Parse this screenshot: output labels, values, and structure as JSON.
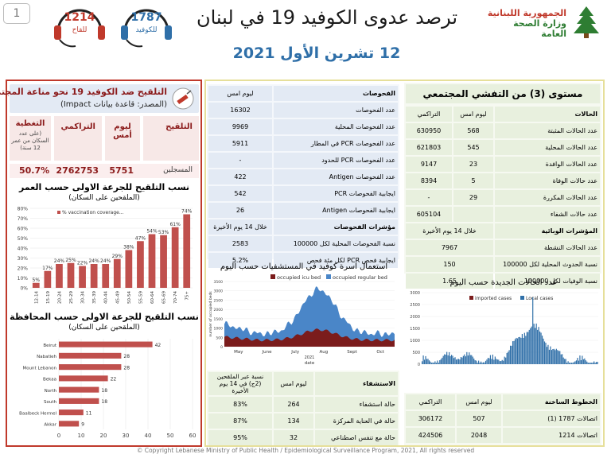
{
  "header": {
    "page_number": "1",
    "title": "ترصد عدوى الكوفيد 19 في لبنان",
    "date": "12 تشرين الأول 2021",
    "gov1": "الجمهورية اللبنانية",
    "gov2": "وزارة الصحة العامة"
  },
  "hotlines": [
    {
      "number": "1787",
      "label": "للكوفيد"
    },
    {
      "number": "1214",
      "label": "للقاح"
    }
  ],
  "vaccination": {
    "title": "التلقيح ضد الكوفيد 19  نحو مناعة المجتمع",
    "source": "(المصدر: قاعدة بيانات Impact)",
    "cols": [
      "التلقيح",
      "ليوم أمس",
      "التراكمي",
      "التغطية"
    ],
    "coverage_note": "(على عدد السكان من عمر 12 سنة)",
    "row": {
      "label": "المسجلين",
      "yesterday": "5751",
      "cumulative": "2762753",
      "coverage": "50.7%"
    },
    "age_title": "نسب التلقيح للجرعة الاولى حسب العمر",
    "age_sub": "(الملقحين على السكان)",
    "gov_title": "نسب التلقيح للجرعة الاولى حسب المحافظة",
    "gov_sub": "(الملقحين على السكان)"
  },
  "testing": {
    "col_title": "الفحوصات",
    "col_yesterday": "ليوم امس",
    "rows": [
      {
        "label": "عدد الفحوصات",
        "value": "16302"
      },
      {
        "label": "عدد الفحوصات المحلية",
        "value": "9969"
      },
      {
        "label": "عدد الفحوصات PCR في المطار",
        "value": "5911"
      },
      {
        "label": "عدد الفحوصات PCR للحدود",
        "value": "-"
      },
      {
        "label": "عدد الفحوصات Antigen",
        "value": "422"
      },
      {
        "label": "ايجابية الفحوصات  PCR",
        "value": "542"
      },
      {
        "label": "ايجابية الفحوصات  Antigen",
        "value": "26"
      }
    ],
    "ind_title": "مؤشرات الفحوصات",
    "ind_col": "خلال 14 يوم الأخيرة",
    "ind_rows": [
      {
        "label": "نسبة الفحوصات  المحلية لكل 100000",
        "value": "2583"
      },
      {
        "label": "ايجابية فحص PCR لكل مئة فحص",
        "value": "5.2%"
      }
    ]
  },
  "community": {
    "title": "مستوى (3) من التفشي المجتمعي",
    "col_cases": "الحالات",
    "col_yesterday": "ليوم امس",
    "col_cumulative": "التراكمي",
    "rows": [
      {
        "label": "عدد الحالات المثبتة",
        "yesterday": "568",
        "cumulative": "630950"
      },
      {
        "label": "عدد الحالات المحلية",
        "yesterday": "545",
        "cumulative": "621803"
      },
      {
        "label": "عدد الحالات الوافدة",
        "yesterday": "23",
        "cumulative": "9147"
      },
      {
        "label": "عدد حالات الوفاة",
        "yesterday": "5",
        "cumulative": "8394"
      },
      {
        "label": "عدد الحالات المكررة",
        "yesterday": "29",
        "cumulative": "-"
      },
      {
        "label": "عدد حالات الشفاء",
        "yesterday": "",
        "cumulative": "605104"
      }
    ],
    "ind_title": "المؤشرات الوبائية",
    "ind_col": "خلال 14 يوم الأخيرة",
    "ind_rows": [
      {
        "label": "عدد الحالات النشطة",
        "value": "7967"
      },
      {
        "label": "نسبة الحدوث المحلية لكل 100000",
        "value": "150"
      },
      {
        "label": "نسبة الوفيات لكل 100000",
        "value": "1.65"
      }
    ]
  },
  "hospital": {
    "chart_title": "استعمال اسرة كوفيد في المستشفيات حسب اليوم",
    "col_title": "الاستشفاء",
    "col_yesterday": "ليوم امس",
    "col_pct": "نسبة عبر الملقحين (2ج) في 14 يوم الأخيرة",
    "rows": [
      {
        "label": "حالة استشفاء",
        "yesterday": "264",
        "pct": "83%"
      },
      {
        "label": "حالة في العناية المركزة",
        "yesterday": "134",
        "pct": "87%"
      },
      {
        "label": "حالة مع تنفس اصطناعي",
        "yesterday": "32",
        "pct": "95%"
      }
    ]
  },
  "new_cases_title": "عدد الحالات الجديدة حسب اليوم",
  "hotline_table": {
    "col_title": "الخطوط الساخنة",
    "col_yesterday": "ليوم امس",
    "col_cumulative": "التراكمي",
    "rows": [
      {
        "label": "اتصالات 1787 (1)",
        "yesterday": "507",
        "cumulative": "306172"
      },
      {
        "label": "اتصالات 1214",
        "yesterday": "2048",
        "cumulative": "424506"
      }
    ]
  },
  "footer": "© Copyright Lebanese Ministry of Public Health / Epidemiological Surveillance Program, 2021, All rights reserved",
  "colors": {
    "vacc_border": "#c0392b",
    "bar": "#c0504d",
    "blue_panel": "#e3eaf4",
    "green_panel": "#e8f0de",
    "title_blue": "#2f6fa8"
  },
  "chart_data": [
    {
      "type": "bar",
      "series": [
        {
          "name": "% vaccination coverage...",
          "values": [
            5,
            17,
            24,
            25,
            22,
            24,
            24,
            29,
            38,
            47,
            54,
            53,
            61,
            74
          ]
        }
      ],
      "categories": [
        "12-14",
        "15-19",
        "20-24",
        "25-29",
        "30-34",
        "35-39",
        "40-44",
        "45-49",
        "50-54",
        "55-59",
        "60-64",
        "65-69",
        "70-74",
        "75+"
      ],
      "ylim": [
        0,
        80
      ],
      "yticks": [
        "0%",
        "10%",
        "20%",
        "30%",
        "40%",
        "50%",
        "60%",
        "70%",
        "80%"
      ]
    },
    {
      "type": "bar",
      "orientation": "horizontal",
      "categories": [
        "Beirut",
        "Nabatieh",
        "Mount Lebanon",
        "Bekaa",
        "North",
        "South",
        "Baalbeck Hermel",
        "Akkar"
      ],
      "values": [
        42,
        28,
        28,
        22,
        18,
        18,
        11,
        9
      ],
      "xlim": [
        0,
        60
      ],
      "xticks": [
        "0",
        "10",
        "20",
        "30",
        "40",
        "50",
        "60"
      ]
    },
    {
      "type": "area",
      "series": [
        {
          "name": "occupied icu bed"
        },
        {
          "name": "occupied regular bed"
        }
      ],
      "ylabel": "number of occupied beds",
      "xlabel": "date",
      "yticks": [
        "0",
        "500",
        "1000",
        "1500",
        "2000",
        "2500",
        "3000",
        "3500"
      ],
      "xticks": [
        "May",
        "June",
        "July",
        "Aug",
        "Sept",
        "Oct"
      ],
      "year_label": "2021"
    },
    {
      "type": "bar",
      "series": [
        {
          "name": "imported cases"
        },
        {
          "name": "Local cases"
        }
      ],
      "ylim": [
        0,
        3000
      ],
      "yticks": [
        "0",
        "500",
        "1000",
        "1500",
        "2000",
        "2500",
        "3000"
      ]
    }
  ]
}
